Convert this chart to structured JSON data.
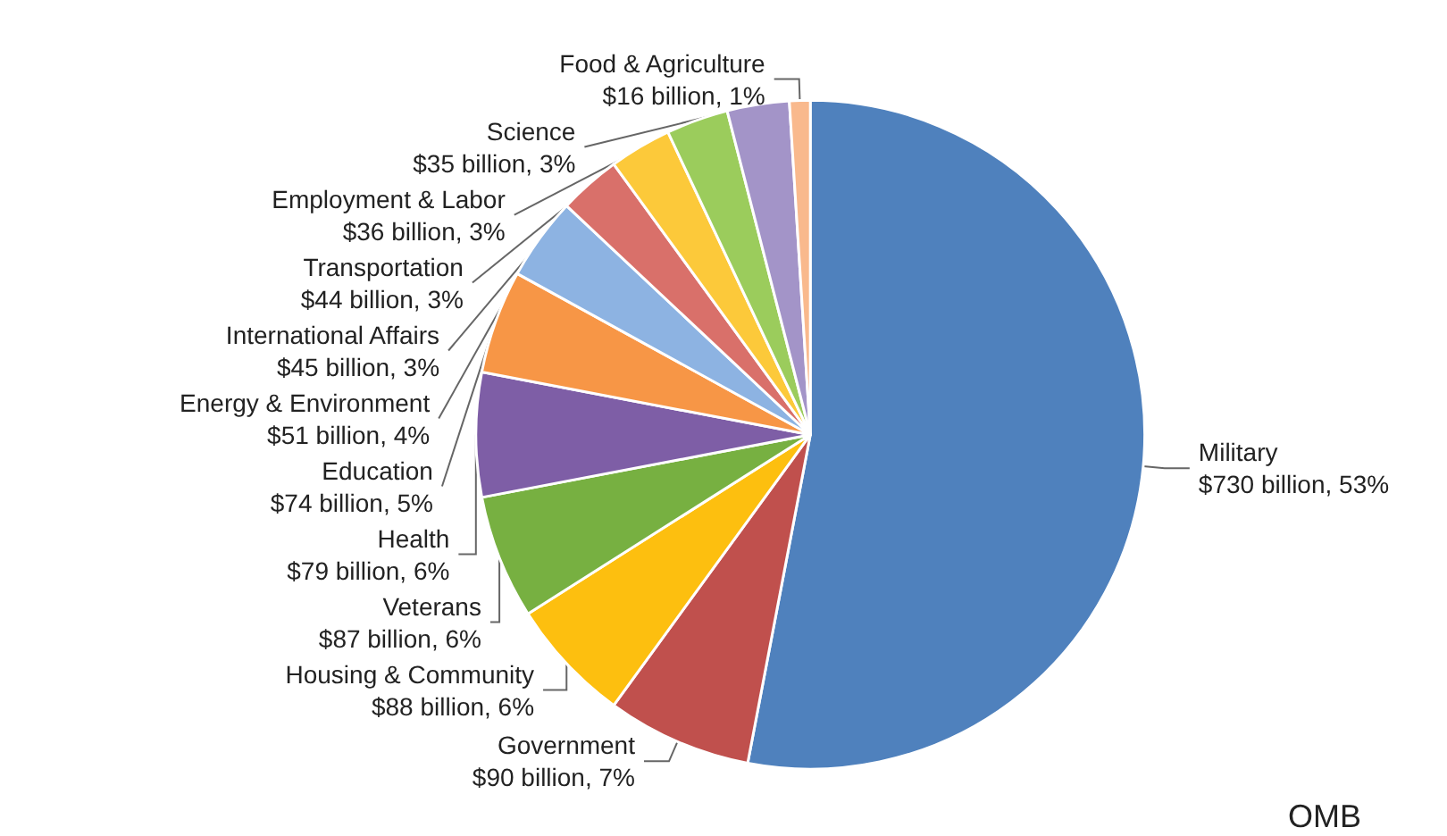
{
  "chart_data": {
    "type": "pie",
    "categories": [
      "Military",
      "Government",
      "Housing & Community",
      "Veterans",
      "Health",
      "Education",
      "Energy & Environment",
      "International Affairs",
      "Transportation",
      "Employment & Labor",
      "Science",
      "Food & Agriculture"
    ],
    "values": [
      53,
      7,
      6,
      6,
      6,
      5,
      4,
      3,
      3,
      3,
      3,
      1
    ],
    "value_labels": [
      "$730 billion, 53%",
      "$90 billion, 7%",
      "$88 billion, 6%",
      "$87 billion, 6%",
      "$79 billion, 6%",
      "$74 billion, 5%",
      "$51 billion, 4%",
      "$45 billion, 3%",
      "$44 billion, 3%",
      "$36 billion, 3%",
      "$35 billion, 3%",
      "$16 billion, 1%"
    ],
    "colors": [
      "#4f81bd",
      "#c0504d",
      "#fdbf0f",
      "#77b041",
      "#7e5ea6",
      "#f79646",
      "#8db3e2",
      "#d9706a",
      "#fcc93a",
      "#9bcc5c",
      "#a394c8",
      "#f9b98d"
    ],
    "annotations": [
      "OMB"
    ]
  }
}
